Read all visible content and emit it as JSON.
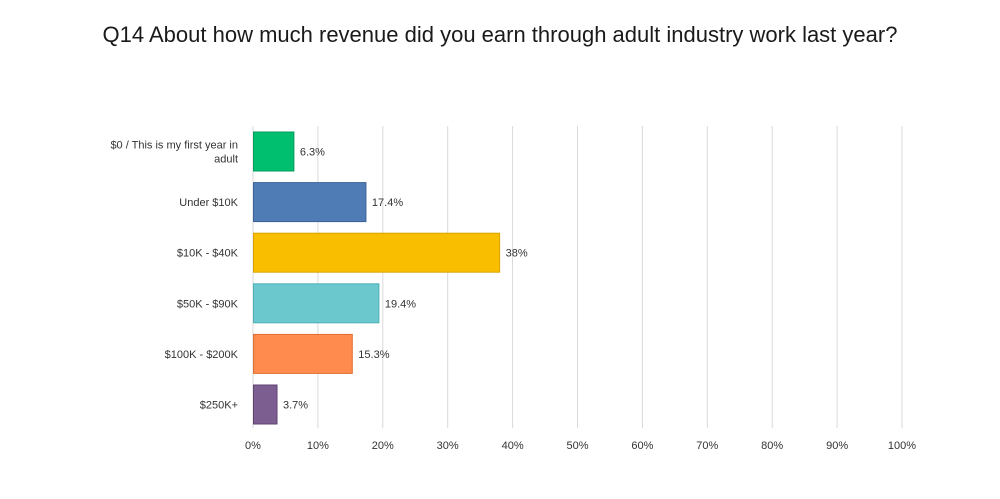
{
  "chart_data": {
    "type": "bar",
    "orientation": "horizontal",
    "title": "Q14 About how much revenue did you earn through adult industry work last year?",
    "categories": [
      [
        "$0 / This is my first year in",
        "adult"
      ],
      [
        "Under $10K"
      ],
      [
        "$10K - $40K"
      ],
      [
        "$50K - $90K"
      ],
      [
        "$100K - $200K"
      ],
      [
        "$250K+"
      ]
    ],
    "values": [
      6.3,
      17.4,
      38,
      19.4,
      15.3,
      3.7
    ],
    "value_labels": [
      "6.3%",
      "17.4%",
      "38%",
      "19.4%",
      "15.3%",
      "3.7%"
    ],
    "colors": [
      "#00bf6f",
      "#507cb6",
      "#f9be00",
      "#6bc8cd",
      "#ff8b4f",
      "#7d5e90"
    ],
    "stroke_colors": [
      "#009e5c",
      "#3a6296",
      "#d9a400",
      "#4fb0b5",
      "#e06d33",
      "#5f4470"
    ],
    "xlim": [
      0,
      100
    ],
    "ticks": [
      0,
      10,
      20,
      30,
      40,
      50,
      60,
      70,
      80,
      90,
      100
    ],
    "tick_labels": [
      "0%",
      "10%",
      "20%",
      "30%",
      "40%",
      "50%",
      "60%",
      "70%",
      "80%",
      "90%",
      "100%"
    ],
    "grid": true,
    "xlabel": "",
    "ylabel": ""
  }
}
